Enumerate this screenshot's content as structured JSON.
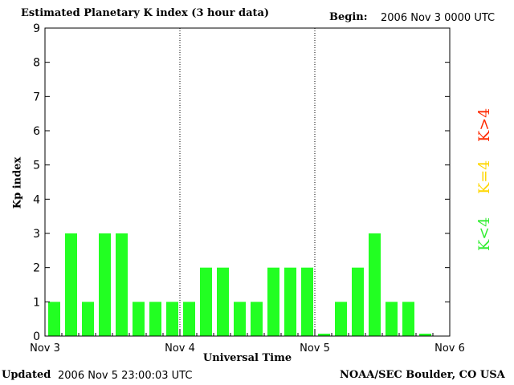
{
  "header": {
    "title": "Estimated Planetary K index (3 hour data)",
    "begin_label": "Begin:",
    "begin_value": "2006 Nov 3 0000 UTC"
  },
  "footer": {
    "updated_label": "Updated",
    "updated_value": "2006 Nov  5 23:00:03 UTC",
    "source": "NOAA/SEC Boulder, CO USA"
  },
  "side_legend": [
    {
      "label": "K>4",
      "color": "#ff2a00"
    },
    {
      "label": "K=4",
      "color": "#ffd700"
    },
    {
      "label": "K<4",
      "color": "#33ee33"
    }
  ],
  "chart_data": {
    "type": "bar",
    "title": "Estimated Planetary K index (3 hour data)",
    "xlabel": "Universal Time",
    "ylabel": "Kp index",
    "ylim": [
      0,
      9
    ],
    "yticks": [
      0,
      1,
      2,
      3,
      4,
      5,
      6,
      7,
      8,
      9
    ],
    "xticks": [
      "Nov 3",
      "Nov 4",
      "Nov 5",
      "Nov 6"
    ],
    "bar_color": "#22ff22",
    "categories": [
      "Nov 3 00",
      "Nov 3 03",
      "Nov 3 06",
      "Nov 3 09",
      "Nov 3 12",
      "Nov 3 15",
      "Nov 3 18",
      "Nov 3 21",
      "Nov 4 00",
      "Nov 4 03",
      "Nov 4 06",
      "Nov 4 09",
      "Nov 4 12",
      "Nov 4 15",
      "Nov 4 18",
      "Nov 4 21",
      "Nov 5 00",
      "Nov 5 03",
      "Nov 5 06",
      "Nov 5 09",
      "Nov 5 12",
      "Nov 5 15",
      "Nov 5 18",
      "Nov 5 21"
    ],
    "values": [
      1,
      3,
      1,
      3,
      3,
      1,
      1,
      1,
      1,
      2,
      2,
      1,
      1,
      2,
      2,
      2,
      0,
      1,
      2,
      3,
      1,
      1,
      0,
      null
    ]
  }
}
